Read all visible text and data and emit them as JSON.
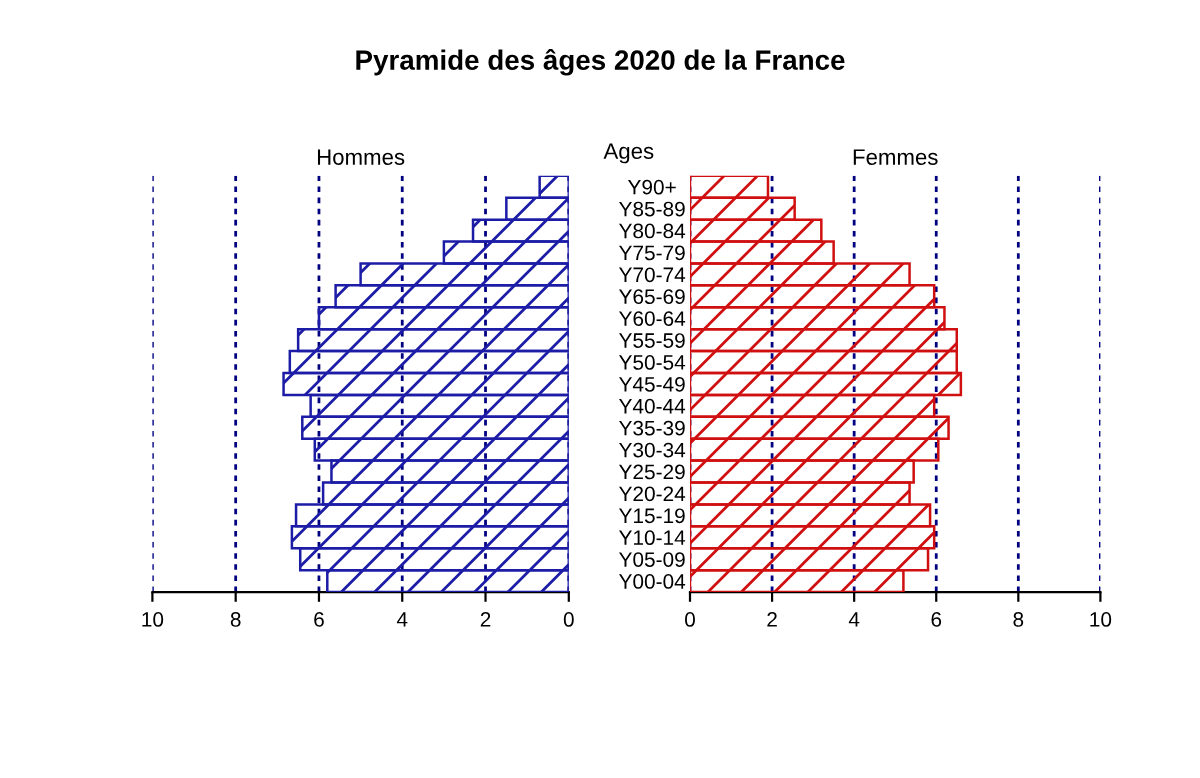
{
  "chart_data": [
    {
      "type": "bar",
      "orientation": "horizontal",
      "title": "Pyramide des âges 2020 de la France",
      "subtitle": "Hommes",
      "ylabel": "Ages",
      "categories": [
        "Y90+",
        "Y85-89",
        "Y80-84",
        "Y75-79",
        "Y70-74",
        "Y65-69",
        "Y60-64",
        "Y55-59",
        "Y50-54",
        "Y45-49",
        "Y40-44",
        "Y35-39",
        "Y30-34",
        "Y25-29",
        "Y20-24",
        "Y15-19",
        "Y10-14",
        "Y05-09",
        "Y00-04"
      ],
      "series": [
        {
          "color": "#1c1ca6",
          "values": [
            0.7,
            1.5,
            2.3,
            3.0,
            5.0,
            5.6,
            6.0,
            6.5,
            6.7,
            6.85,
            6.2,
            6.4,
            6.1,
            5.7,
            5.9,
            6.55,
            6.65,
            6.45,
            5.8
          ]
        }
      ],
      "xlim": [
        10,
        0
      ],
      "xticks": [
        10,
        8,
        6,
        4,
        2,
        0
      ],
      "grid": "x"
    },
    {
      "type": "bar",
      "orientation": "horizontal",
      "title": "Femmes",
      "tick_labels": "x",
      "categories": [
        null,
        null,
        null,
        null,
        null,
        null,
        null,
        null,
        null,
        null,
        null,
        null,
        null,
        null,
        null,
        null,
        null,
        null,
        null
      ],
      "series": [
        {
          "color": "#d01010",
          "values": [
            1.9,
            2.55,
            3.2,
            3.5,
            5.35,
            5.95,
            6.2,
            6.5,
            6.5,
            6.6,
            5.95,
            6.3,
            6.05,
            5.45,
            5.35,
            5.85,
            5.95,
            5.8,
            5.2
          ]
        }
      ],
      "xlim": [
        0,
        10
      ],
      "xticks": [
        0,
        2,
        4,
        6,
        8,
        10
      ],
      "grid": "x"
    }
  ]
}
